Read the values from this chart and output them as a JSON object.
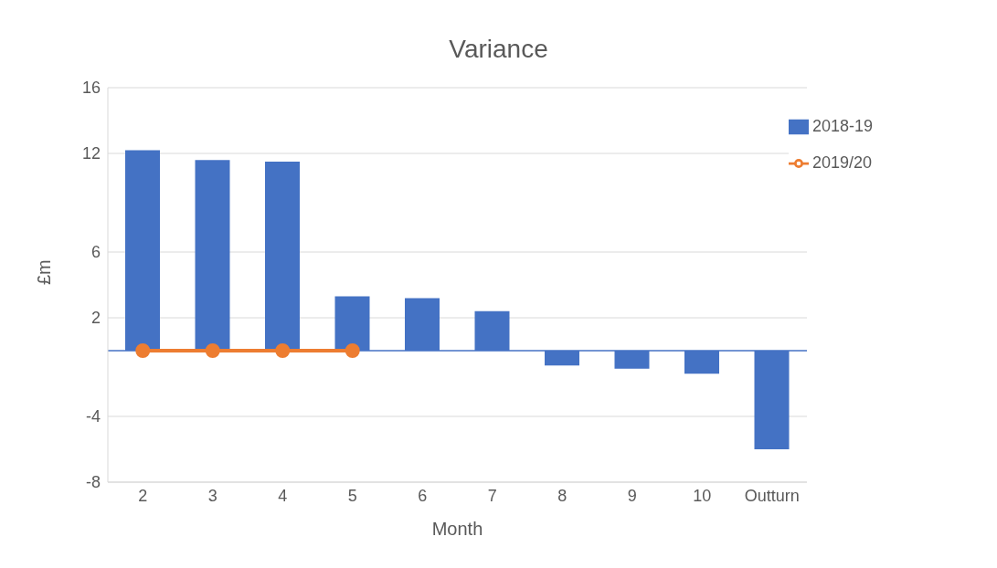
{
  "chart_data": {
    "type": "bar",
    "title": "Variance",
    "xlabel": "Month",
    "ylabel": "£m",
    "categories": [
      "2",
      "3",
      "4",
      "5",
      "6",
      "7",
      "8",
      "9",
      "10",
      "Outturn"
    ],
    "series": [
      {
        "name": "2018-19",
        "color": "#4472c4",
        "values": [
          12.2,
          11.6,
          11.5,
          3.3,
          3.2,
          2.4,
          -0.9,
          -1.1,
          -1.4,
          -6.0
        ]
      },
      {
        "name": "2019/20",
        "type": "line",
        "color": "#ed7d31",
        "values": [
          0,
          0,
          0,
          0,
          null,
          null,
          null,
          null,
          null,
          null
        ]
      }
    ],
    "ylim": [
      -8,
      16
    ],
    "yticks": [
      -8,
      -4,
      2,
      6,
      12,
      16
    ],
    "ref_lines": [
      {
        "axis": "y",
        "value": 0,
        "color": "#4472c4"
      }
    ],
    "grid": "y",
    "legend": "top right",
    "marker": "circle"
  }
}
